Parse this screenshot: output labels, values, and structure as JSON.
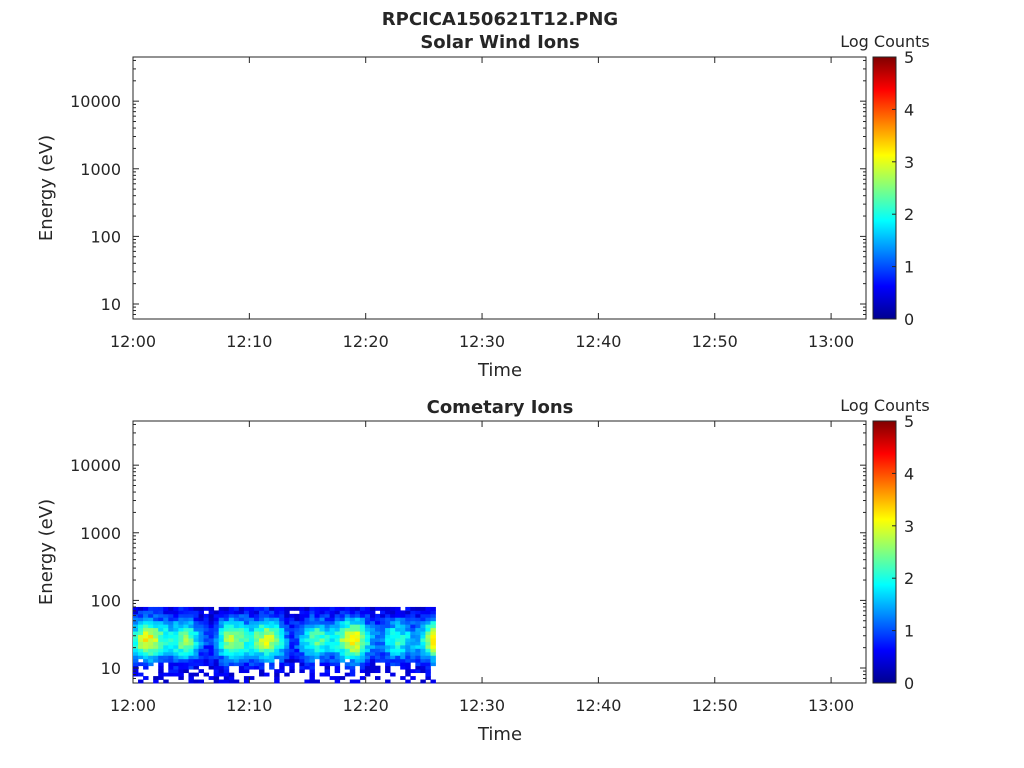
{
  "figure_title": "RPCICA150621T12.PNG",
  "colors": {
    "axis": "#262626",
    "colormap": [
      "#00008f",
      "#0000ff",
      "#0080ff",
      "#00ffff",
      "#80ff80",
      "#ffff00",
      "#ff8000",
      "#ff0000",
      "#800000"
    ]
  },
  "chart_data": [
    {
      "type": "heatmap",
      "title": "Solar Wind Ions",
      "xlabel": "Time",
      "ylabel": "Energy (eV)",
      "x_ticks": [
        "12:00",
        "12:10",
        "12:20",
        "12:30",
        "12:40",
        "12:50",
        "13:00"
      ],
      "y_ticks": [
        "10",
        "100",
        "1000",
        "10000"
      ],
      "y_scale": "log",
      "ylim": [
        6,
        45000
      ],
      "xlim_minutes": [
        0,
        63
      ],
      "colorbar": {
        "label": "Log Counts",
        "ticks": [
          "0",
          "1",
          "2",
          "3",
          "4",
          "5"
        ],
        "range": [
          0,
          5
        ]
      },
      "data_coverage": null
    },
    {
      "type": "heatmap",
      "title": "Cometary Ions",
      "xlabel": "Time",
      "ylabel": "Energy (eV)",
      "x_ticks": [
        "12:00",
        "12:10",
        "12:20",
        "12:30",
        "12:40",
        "12:50",
        "13:00"
      ],
      "y_ticks": [
        "10",
        "100",
        "1000",
        "10000"
      ],
      "y_scale": "log",
      "ylim": [
        6,
        45000
      ],
      "xlim_minutes": [
        0,
        63
      ],
      "colorbar": {
        "label": "Log Counts",
        "ticks": [
          "0",
          "1",
          "2",
          "3",
          "4",
          "5"
        ],
        "range": [
          0,
          5
        ]
      },
      "data_coverage": {
        "start": "12:00",
        "end": "12:26",
        "energy_min_ev": 6,
        "energy_max_ev": 80,
        "peak_log_counts": 3
      }
    }
  ]
}
